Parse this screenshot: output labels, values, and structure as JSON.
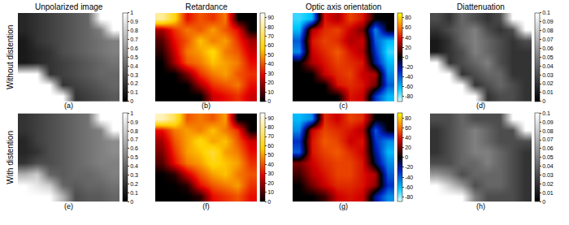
{
  "chart_data": [
    {
      "type": "heatmap",
      "title": "Unpolarized image",
      "ylabel": "Without distention",
      "xlabel": "(a)",
      "color": "gray",
      "tick_labels": false,
      "zlim": [
        0,
        1
      ],
      "zticks": [
        0,
        0.1,
        0.2,
        0.3,
        0.4,
        0.5,
        0.6,
        0.7,
        0.8,
        0.9,
        1
      ],
      "z": [
        [
          0.15,
          0.2,
          0.25,
          0.3,
          0.35,
          0.4,
          1,
          1
        ],
        [
          0.15,
          0.2,
          0.25,
          0.3,
          0.35,
          0.4,
          0.5,
          1
        ],
        [
          0.1,
          0.2,
          0.25,
          0.3,
          0.35,
          0.4,
          0.45,
          0.5
        ],
        [
          0.1,
          0.15,
          0.2,
          0.3,
          0.35,
          0.4,
          0.45,
          0.5
        ],
        [
          0.1,
          0.15,
          0.2,
          0.25,
          0.3,
          0.35,
          0.4,
          0.45
        ],
        [
          1,
          1,
          0.2,
          0.25,
          0.3,
          0.35,
          0.4,
          0.4
        ],
        [
          1,
          1,
          1,
          0.2,
          0.25,
          0.3,
          0.35,
          0.4
        ],
        [
          1,
          1,
          1,
          1,
          0.2,
          0.25,
          0.3,
          0.35
        ]
      ]
    },
    {
      "type": "heatmap",
      "title": "Retardance",
      "xlabel": "(b)",
      "color": "hot",
      "tick_labels": false,
      "zlim": [
        0,
        95
      ],
      "zticks": [
        0,
        10,
        20,
        30,
        40,
        50,
        60,
        70,
        80,
        90
      ],
      "z": [
        [
          80,
          60,
          30,
          40,
          35,
          45,
          0,
          0
        ],
        [
          20,
          35,
          45,
          40,
          50,
          40,
          30,
          0
        ],
        [
          10,
          30,
          40,
          55,
          45,
          50,
          35,
          20
        ],
        [
          5,
          25,
          45,
          50,
          60,
          45,
          40,
          25
        ],
        [
          0,
          20,
          40,
          45,
          55,
          50,
          45,
          30
        ],
        [
          0,
          0,
          15,
          35,
          45,
          50,
          40,
          35
        ],
        [
          0,
          0,
          0,
          20,
          35,
          40,
          45,
          30
        ],
        [
          0,
          0,
          0,
          0,
          25,
          30,
          35,
          25
        ]
      ]
    },
    {
      "type": "heatmap",
      "title": "Optic axis orientation",
      "xlabel": "(c)",
      "color": "bipolar",
      "tick_labels": false,
      "zlim": [
        -90,
        90
      ],
      "zticks": [
        -80,
        -60,
        -40,
        -20,
        0,
        20,
        40,
        60,
        80
      ],
      "z": [
        [
          -70,
          -60,
          40,
          30,
          50,
          40,
          0,
          0
        ],
        [
          -60,
          30,
          45,
          50,
          35,
          20,
          -50,
          0
        ],
        [
          -40,
          40,
          50,
          45,
          30,
          35,
          -40,
          -60
        ],
        [
          -50,
          35,
          45,
          55,
          40,
          30,
          -30,
          -70
        ],
        [
          0,
          30,
          40,
          50,
          45,
          40,
          -20,
          -60
        ],
        [
          0,
          0,
          35,
          45,
          50,
          35,
          30,
          -50
        ],
        [
          0,
          0,
          0,
          40,
          45,
          40,
          20,
          -40
        ],
        [
          0,
          0,
          0,
          0,
          40,
          35,
          -30,
          -60
        ]
      ]
    },
    {
      "type": "heatmap",
      "title": "Diattenuation",
      "xlabel": "(d)",
      "color": "gray",
      "tick_labels": false,
      "zlim": [
        0,
        0.1
      ],
      "zticks": [
        0,
        0.01,
        0.02,
        0.03,
        0.04,
        0.05,
        0.06,
        0.07,
        0.08,
        0.09,
        0.1
      ],
      "z": [
        [
          0.03,
          0.02,
          0.04,
          0.03,
          0.02,
          0.03,
          0.1,
          0.1
        ],
        [
          0.02,
          0.03,
          0.04,
          0.05,
          0.03,
          0.02,
          0.03,
          0.1
        ],
        [
          0.01,
          0.02,
          0.04,
          0.05,
          0.04,
          0.03,
          0.02,
          0.03
        ],
        [
          0.01,
          0.02,
          0.03,
          0.05,
          0.04,
          0.03,
          0.02,
          0.02
        ],
        [
          0.1,
          0.02,
          0.03,
          0.04,
          0.05,
          0.03,
          0.02,
          0.02
        ],
        [
          0.1,
          0.1,
          0.02,
          0.03,
          0.04,
          0.04,
          0.02,
          0.02
        ],
        [
          0.1,
          0.1,
          0.1,
          0.02,
          0.03,
          0.04,
          0.03,
          0.02
        ],
        [
          0.1,
          0.1,
          0.1,
          0.1,
          0.02,
          0.03,
          0.03,
          0.02
        ]
      ]
    },
    {
      "type": "heatmap",
      "ylabel": "With distention",
      "xlabel": "(e)",
      "color": "gray",
      "tick_labels": false,
      "zlim": [
        0,
        1
      ],
      "zticks": [
        0,
        0.1,
        0.2,
        0.3,
        0.4,
        0.5,
        0.6,
        0.7,
        0.8,
        0.9,
        1
      ],
      "z": [
        [
          0.2,
          0.25,
          0.3,
          0.35,
          0.4,
          0.45,
          1,
          1
        ],
        [
          0.2,
          0.25,
          0.3,
          0.35,
          0.4,
          0.45,
          0.5,
          1
        ],
        [
          0.15,
          0.25,
          0.3,
          0.35,
          0.4,
          0.45,
          0.5,
          0.55
        ],
        [
          0.15,
          0.2,
          0.3,
          0.35,
          0.4,
          0.45,
          0.5,
          0.55
        ],
        [
          0.2,
          0.3,
          0.3,
          0.35,
          0.4,
          0.45,
          0.5,
          0.5
        ],
        [
          0.7,
          0.8,
          0.4,
          0.35,
          0.4,
          0.4,
          0.45,
          0.5
        ],
        [
          1,
          0.9,
          0.8,
          0.4,
          0.35,
          0.4,
          0.4,
          0.45
        ],
        [
          1,
          1,
          1,
          0.7,
          0.3,
          0.35,
          0.35,
          0.4
        ]
      ]
    },
    {
      "type": "heatmap",
      "xlabel": "(f)",
      "color": "hot",
      "tick_labels": false,
      "zlim": [
        0,
        95
      ],
      "zticks": [
        0,
        10,
        20,
        30,
        40,
        50,
        60,
        70,
        80,
        90
      ],
      "z": [
        [
          85,
          70,
          40,
          45,
          40,
          50,
          0,
          0
        ],
        [
          30,
          45,
          50,
          45,
          55,
          45,
          35,
          0
        ],
        [
          20,
          40,
          50,
          60,
          50,
          55,
          40,
          25
        ],
        [
          15,
          35,
          50,
          55,
          65,
          50,
          45,
          30
        ],
        [
          10,
          30,
          45,
          50,
          60,
          55,
          50,
          35
        ],
        [
          0,
          5,
          25,
          40,
          50,
          55,
          45,
          40
        ],
        [
          0,
          0,
          5,
          30,
          40,
          45,
          50,
          35
        ],
        [
          0,
          0,
          0,
          5,
          30,
          35,
          40,
          30
        ]
      ]
    },
    {
      "type": "heatmap",
      "xlabel": "(g)",
      "color": "bipolar",
      "tick_labels": false,
      "zlim": [
        -90,
        90
      ],
      "zticks": [
        -80,
        -60,
        -40,
        -20,
        0,
        20,
        40,
        60,
        80
      ],
      "z": [
        [
          -60,
          -50,
          45,
          35,
          50,
          45,
          0,
          0
        ],
        [
          -50,
          35,
          50,
          45,
          40,
          30,
          -40,
          0
        ],
        [
          -30,
          40,
          55,
          50,
          35,
          40,
          -30,
          -50
        ],
        [
          -40,
          40,
          50,
          55,
          45,
          35,
          -20,
          -60
        ],
        [
          20,
          35,
          45,
          50,
          50,
          40,
          -10,
          -50
        ],
        [
          10,
          30,
          40,
          50,
          50,
          40,
          30,
          -40
        ],
        [
          0,
          20,
          35,
          45,
          45,
          40,
          25,
          -30
        ],
        [
          0,
          0,
          10,
          35,
          40,
          35,
          -20,
          -50
        ]
      ]
    },
    {
      "type": "heatmap",
      "xlabel": "(h)",
      "color": "gray",
      "tick_labels": false,
      "zlim": [
        0,
        0.1
      ],
      "zticks": [
        0,
        0.01,
        0.02,
        0.03,
        0.04,
        0.05,
        0.06,
        0.07,
        0.08,
        0.09,
        0.1
      ],
      "z": [
        [
          0.03,
          0.03,
          0.04,
          0.03,
          0.03,
          0.03,
          0.1,
          0.1
        ],
        [
          0.02,
          0.03,
          0.04,
          0.05,
          0.04,
          0.03,
          0.03,
          0.1
        ],
        [
          0.02,
          0.03,
          0.04,
          0.05,
          0.04,
          0.03,
          0.03,
          0.03
        ],
        [
          0.02,
          0.03,
          0.04,
          0.05,
          0.05,
          0.04,
          0.03,
          0.02
        ],
        [
          0.03,
          0.03,
          0.04,
          0.04,
          0.05,
          0.04,
          0.03,
          0.02
        ],
        [
          0.06,
          0.05,
          0.03,
          0.04,
          0.04,
          0.04,
          0.03,
          0.02
        ],
        [
          0.1,
          0.08,
          0.06,
          0.03,
          0.04,
          0.04,
          0.03,
          0.02
        ],
        [
          0.1,
          0.1,
          0.1,
          0.05,
          0.03,
          0.03,
          0.03,
          0.02
        ]
      ]
    }
  ]
}
